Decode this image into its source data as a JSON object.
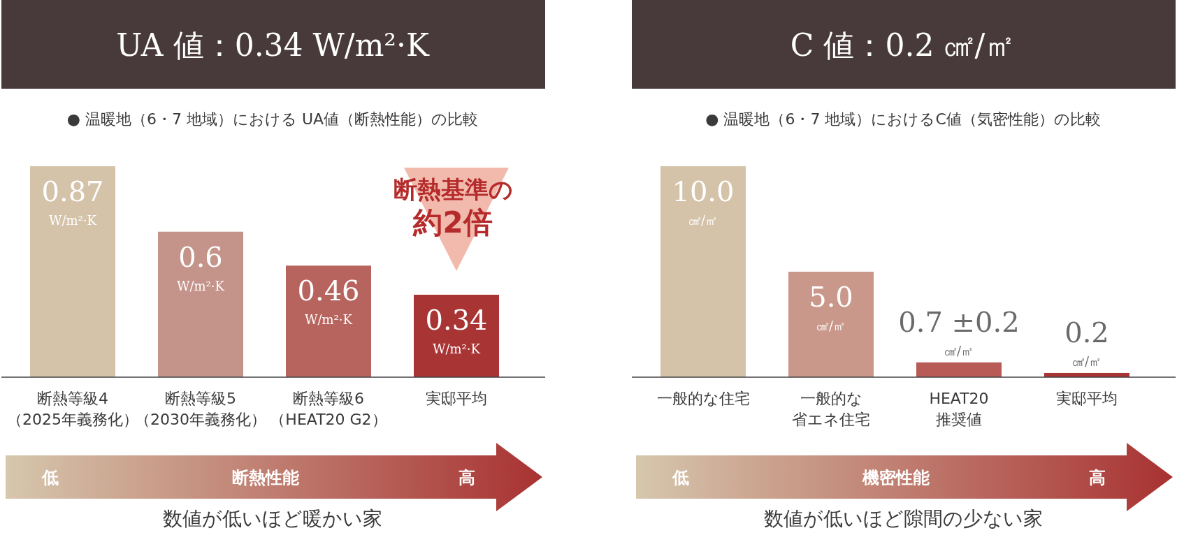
{
  "chart_data": [
    {
      "type": "bar",
      "title": "UA 値：0.34 W/m²·K",
      "subtitle": "● 温暖地（6・7 地域）における UA値（断熱性能）の比較",
      "categories": [
        "断熱等級4\n（2025年義務化）",
        "断熱等級5\n（2030年義務化）",
        "断熱等級6\n（HEAT20 G2）",
        "実邸平均"
      ],
      "values": [
        0.87,
        0.6,
        0.46,
        0.34
      ],
      "colors": [
        "#d4c3a9",
        "#c4948a",
        "#b8645e",
        "#a83434"
      ],
      "value_labels": [
        "0.87\nW/m²·K",
        "0.6\nW/m²·K",
        "0.46\nW/m²·K",
        "0.34\nW/m²·K"
      ],
      "annotations": [
        "断熱基準の",
        "約2倍",
        "低",
        "断熱性能",
        "高",
        "数値が低いほど暖かい家"
      ]
    },
    {
      "type": "bar",
      "title": "C 値：0.2 ㎠/㎡",
      "subtitle": "● 温暖地（6・7 地域）におけるC値（気密性能）の比較",
      "categories": [
        "一般的な住宅",
        "一般的な省エネ住宅",
        "HEAT20\n推奨値",
        "実邸平均"
      ],
      "values": [
        10.0,
        5.0,
        0.7,
        0.2
      ],
      "colors": [
        "#d4c3a9",
        "#c9988b",
        "#b85a56",
        "#a83434"
      ],
      "value_labels": [
        "10.0\n㎠/㎡",
        "5.0\n㎠/㎡",
        "0.7 ±0.2\n㎠/㎡",
        "0.2\n㎠/㎡"
      ],
      "annotations": [
        "低",
        "機密性能",
        "高",
        "数値が低いほど隙間の少ない家"
      ]
    }
  ]
}
